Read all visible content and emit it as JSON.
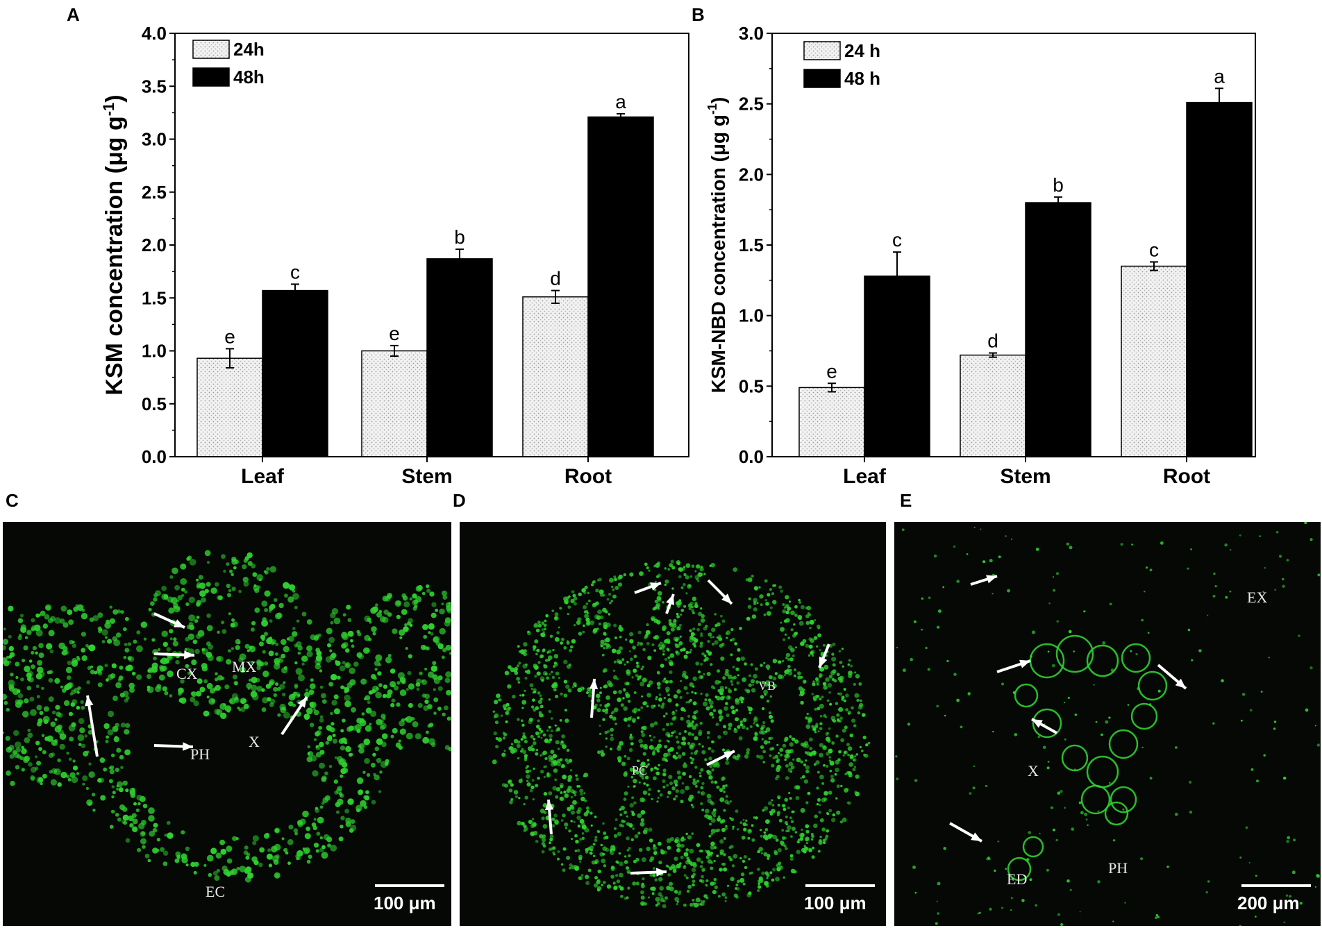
{
  "chart_data": [
    {
      "panel": "A",
      "type": "bar",
      "categories": [
        "Leaf",
        "Stem",
        "Root"
      ],
      "ylabel_main": "KSM concentration (μg g",
      "ylabel_sup": "-1",
      "ylabel_close": ")",
      "ylim": [
        0,
        4.0
      ],
      "yticks": [
        "0.0",
        "0.5",
        "1.0",
        "1.5",
        "2.0",
        "2.5",
        "3.0",
        "3.5",
        "4.0"
      ],
      "legend_position": "top-left",
      "series": [
        {
          "name": "24h",
          "values": [
            0.93,
            1.0,
            1.51
          ],
          "errors": [
            0.09,
            0.05,
            0.06
          ],
          "letters": [
            "e",
            "e",
            "d"
          ],
          "pattern": "dotted-light"
        },
        {
          "name": "48h",
          "values": [
            1.57,
            1.87,
            3.21
          ],
          "errors": [
            0.06,
            0.09,
            0.03
          ],
          "letters": [
            "c",
            "b",
            "a"
          ],
          "pattern": "solid-black"
        }
      ]
    },
    {
      "panel": "B",
      "type": "bar",
      "categories": [
        "Leaf",
        "Stem",
        "Root"
      ],
      "ylabel_main": "KSM-NBD concentration (μg g",
      "ylabel_sup": "-1",
      "ylabel_close": ")",
      "ylim": [
        0,
        3.0
      ],
      "yticks": [
        "0.0",
        "0.5",
        "1.0",
        "1.5",
        "2.0",
        "2.5",
        "3.0"
      ],
      "legend_position": "top-left",
      "series": [
        {
          "name": "24 h",
          "values": [
            0.49,
            0.72,
            1.35
          ],
          "errors": [
            0.03,
            0.015,
            0.03
          ],
          "letters": [
            "e",
            "d",
            "c"
          ],
          "pattern": "dotted-light"
        },
        {
          "name": "48 h",
          "values": [
            1.28,
            1.8,
            2.51
          ],
          "errors": [
            0.17,
            0.04,
            0.1
          ],
          "letters": [
            "c",
            "b",
            "a"
          ],
          "pattern": "solid-black"
        }
      ]
    }
  ],
  "micrographs": [
    {
      "panel": "C",
      "labels": [
        "CX",
        "MX",
        "PH",
        "X",
        "EC"
      ],
      "scale": "100 μm"
    },
    {
      "panel": "D",
      "labels": [
        "VB",
        "PC"
      ],
      "scale": "100 μm"
    },
    {
      "panel": "E",
      "labels": [
        "EX",
        "X",
        "ED",
        "PH"
      ],
      "scale": "200 μm"
    }
  ],
  "colors": {
    "fluorescence": "#2fd02f",
    "background": "#050805",
    "bar_48h": "#000000",
    "bar_24h": "#e6e6e6"
  }
}
